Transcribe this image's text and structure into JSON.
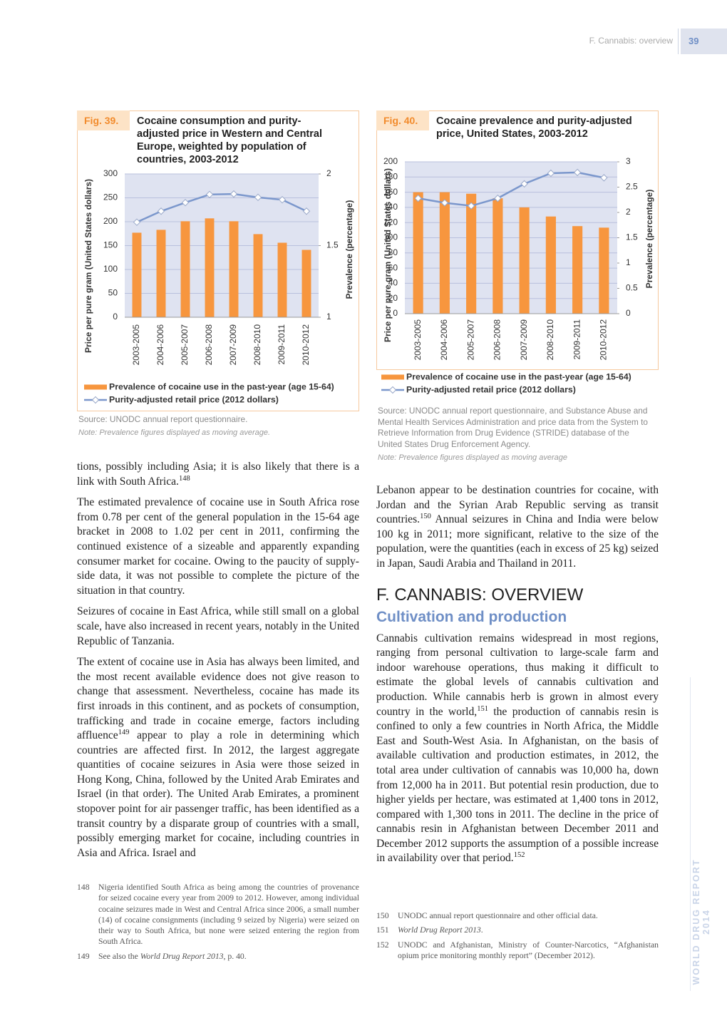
{
  "header": {
    "section": "F. Cannabis: overview",
    "page": "39"
  },
  "side_text": "WORLD DRUG REPORT 2014",
  "chart_data": [
    {
      "type": "combo",
      "label": "Fig. 39.",
      "title": "Cocaine consumption and purity-adjusted price in Western and Central Europe, weighted by population of countries, 2003-2012",
      "categories": [
        "2003-2005",
        "2004-2006",
        "2005-2007",
        "2006-2008",
        "2007-2009",
        "2008-2010",
        "2009-2011",
        "2010-2012"
      ],
      "series": [
        {
          "name": "Prevalence of cocaine use in the past-year (age 15-64)",
          "type": "bar",
          "axis": "y2",
          "color": "#f7963e",
          "values": [
            1.59,
            1.61,
            1.67,
            1.69,
            1.67,
            1.58,
            1.52,
            1.47
          ]
        },
        {
          "name": "Purity-adjusted retail price (2012 dollars)",
          "type": "line",
          "color": "#7b97cc",
          "values": [
            199,
            222,
            240,
            257,
            258,
            251,
            246,
            222
          ]
        }
      ],
      "ylabel": "Price per pure gram (United States dollars)",
      "y2label": "Prevalence (percentage)",
      "ylim": [
        0,
        300
      ],
      "yticks": [
        0,
        50,
        100,
        150,
        200,
        250,
        300
      ],
      "y2lim": [
        1,
        2
      ],
      "y2ticks": [
        1,
        1.5,
        2
      ],
      "grid": true,
      "source": "Source: UNODC annual report questionnaire.",
      "note": "Note: Prevalence figures displayed as moving average."
    },
    {
      "type": "combo",
      "label": "Fig. 40.",
      "title": "Cocaine prevalence and purity-adjusted price, United States, 2003-2012",
      "categories": [
        "2003-2005",
        "2004-2006",
        "2005-2007",
        "2006-2008",
        "2007-2009",
        "2008-2010",
        "2009-2011",
        "2010-2012"
      ],
      "series": [
        {
          "name": "Prevalence of cocaine use in the past-year (age 15-64)",
          "type": "bar",
          "axis": "y2",
          "color": "#f7963e",
          "values": [
            2.4,
            2.4,
            2.37,
            2.28,
            2.1,
            1.92,
            1.73,
            1.7
          ]
        },
        {
          "name": "Purity-adjusted retail price (2012 dollars)",
          "type": "line",
          "color": "#7b97cc",
          "values": [
            152,
            146,
            142,
            152,
            171,
            185,
            186,
            179
          ]
        }
      ],
      "ylabel": "Price per pure gram (United States dollars)",
      "y2label": "Prevalence (percentage)",
      "ylim": [
        0,
        200
      ],
      "yticks": [
        0,
        20,
        40,
        60,
        80,
        100,
        120,
        140,
        160,
        180,
        200
      ],
      "y2lim": [
        0,
        3
      ],
      "y2ticks": [
        0,
        0.5,
        1,
        1.5,
        2,
        2.5,
        3
      ],
      "grid": true,
      "source": "Source: UNODC annual report questionnaire, and Substance Abuse and Mental Health Services Administration and price data from the System to Retrieve Information from Drug Evidence (STRIDE) database of the United States Drug Enforcement Agency.",
      "note": "Note: Prevalence figures displayed as moving average"
    }
  ],
  "left_column": [
    [
      {
        "t": "tions, possibly including Asia; it is also likely that there is a link with South Africa."
      },
      {
        "sup": "148"
      }
    ],
    [
      {
        "t": "The estimated prevalence of cocaine use in South Africa rose from 0.78 per cent of the general population in the 15-64 age bracket in 2008 to 1.02 per cent in 2011, confirming the continued existence of a sizeable and apparently expanding consumer market for cocaine. Owing to the paucity of supply-side data, it was not possible to complete the picture of the situation in that country."
      }
    ],
    [
      {
        "t": "Seizures of cocaine in East Africa, while still small on a global scale, have also increased in recent years, notably in the United Republic of Tanzania."
      }
    ],
    [
      {
        "t": "The extent of cocaine use in Asia has always been limited, and the most recent available evidence does not give reason to change that assessment. Nevertheless, cocaine has made its first inroads in this continent, and as pockets of consumption, trafficking and trade in cocaine emerge, factors including affluence"
      },
      {
        "sup": "149"
      },
      {
        "t": " appear to play a role in determining which countries are affected first. In 2012, the largest aggregate quantities of cocaine seizures in Asia were those seized in Hong Kong, China, followed by the United Arab Emirates and Israel (in that order). The United Arab Emirates, a prominent stopover point for air passenger traffic, has been identified as a transit country by a disparate group of countries with a small, possibly emerging market for cocaine, including countries in Asia and Africa. Israel and"
      }
    ]
  ],
  "right_column": {
    "intro": [
      {
        "t": "Lebanon appear to be destination countries for cocaine, with Jordan and the Syrian Arab Republic serving as transit countries."
      },
      {
        "sup": "150"
      },
      {
        "t": " Annual seizures in China and India were below 100 kg in 2011; more significant, relative to the size of the population, were the quantities (each in excess of 25 kg) seized in Japan, Saudi Arabia and Thailand in 2011."
      }
    ],
    "heading": "F. CANNABIS: OVERVIEW",
    "subheading": "Cultivation and production",
    "body": [
      {
        "t": "Cannabis cultivation remains widespread in most regions, ranging from personal cultivation to large-scale farm and indoor warehouse operations, thus making it difficult to estimate the global levels of cannabis cultivation and production. While cannabis herb is grown in almost every country in the world,"
      },
      {
        "sup": "151"
      },
      {
        "t": " the production of cannabis resin is confined to only a few countries in North Africa, the Middle East and South-West Asia. In Afghanistan, on the basis of available cultivation and production estimates, in 2012, the total area under cultivation of cannabis was 10,000 ha, down from 12,000 ha in 2011. But potential resin production, due to higher yields per hectare, was estimated at 1,400 tons in 2012, compared with 1,300 tons in 2011. The decline in the price of cannabis resin in Afghanistan between December 2011 and December 2012 supports the assumption of a possible increase in availability over that period."
      },
      {
        "sup": "152"
      }
    ]
  },
  "footnotes_left": [
    {
      "number": "148",
      "parts": [
        {
          "t": "Nigeria identified South Africa as being among the countries of provenance for seized cocaine every year from 2009 to 2012. However, among individual cocaine seizures made in West and Central Africa since 2006, a small number (14) of cocaine consignments (including 9 seized by Nigeria) were seized on their way to South Africa, but none were seized entering the region from South Africa."
        }
      ]
    },
    {
      "number": "149",
      "parts": [
        {
          "t": "See also the "
        },
        {
          "i": "World Drug Report 2013"
        },
        {
          "t": ", p. 40."
        }
      ]
    }
  ],
  "footnotes_right": [
    {
      "number": "150",
      "parts": [
        {
          "t": "UNODC annual report questionnaire and other official data."
        }
      ]
    },
    {
      "number": "151",
      "parts": [
        {
          "i": "World Drug Report 2013"
        },
        {
          "t": "."
        }
      ]
    },
    {
      "number": "152",
      "parts": [
        {
          "t": "UNODC and Afghanistan, Ministry of Counter-Narcotics, “Afghanistan opium price monitoring monthly report” (December 2012)."
        }
      ]
    }
  ]
}
